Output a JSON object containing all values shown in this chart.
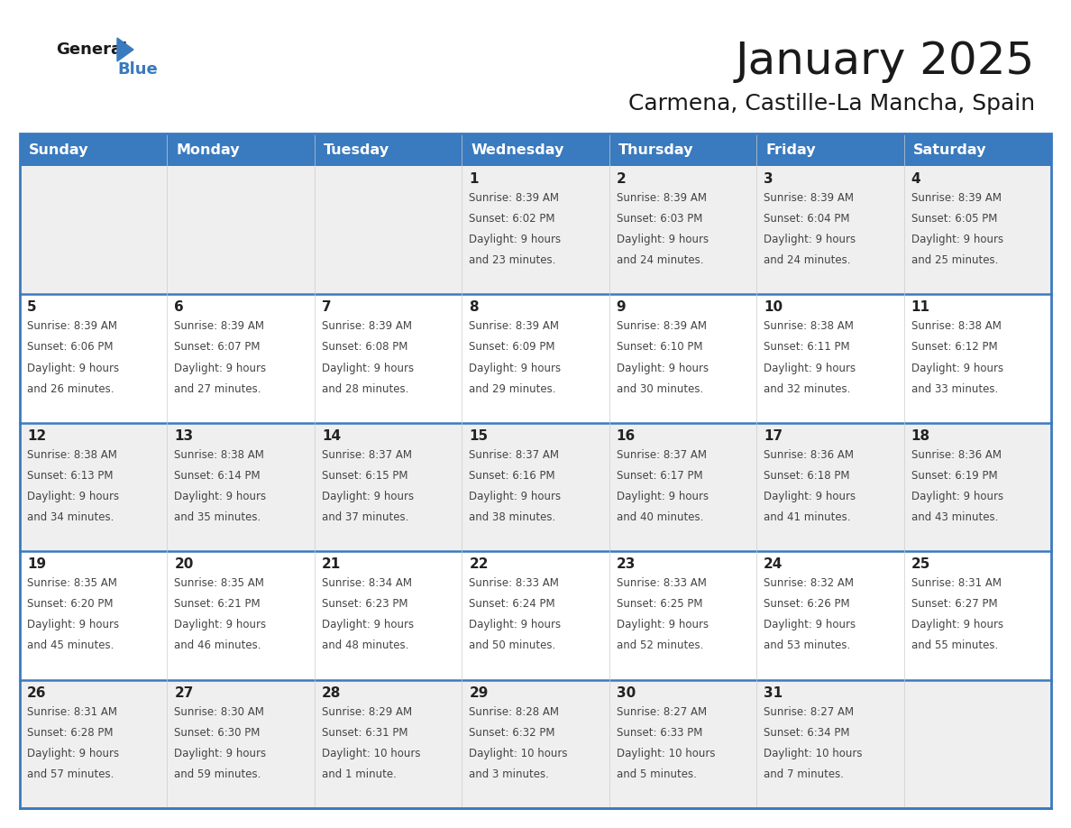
{
  "title": "January 2025",
  "subtitle": "Carmena, Castille-La Mancha, Spain",
  "header_bg_color": "#3a7abf",
  "header_text_color": "#ffffff",
  "day_names": [
    "Sunday",
    "Monday",
    "Tuesday",
    "Wednesday",
    "Thursday",
    "Friday",
    "Saturday"
  ],
  "title_color": "#1a1a1a",
  "subtitle_color": "#1a1a1a",
  "cell_text_color": "#444444",
  "cell_number_color": "#222222",
  "divider_color": "#3a7abf",
  "bg_color": "#ffffff",
  "alt_row_color": "#efefef",
  "logo_general_color": "#1a1a1a",
  "logo_blue_color": "#3a7abf",
  "calendar_data": [
    {
      "day": 1,
      "col": 3,
      "row": 0,
      "sunrise": "8:39 AM",
      "sunset": "6:02 PM",
      "daylight_hours": 9,
      "daylight_minutes": 23
    },
    {
      "day": 2,
      "col": 4,
      "row": 0,
      "sunrise": "8:39 AM",
      "sunset": "6:03 PM",
      "daylight_hours": 9,
      "daylight_minutes": 24
    },
    {
      "day": 3,
      "col": 5,
      "row": 0,
      "sunrise": "8:39 AM",
      "sunset": "6:04 PM",
      "daylight_hours": 9,
      "daylight_minutes": 24
    },
    {
      "day": 4,
      "col": 6,
      "row": 0,
      "sunrise": "8:39 AM",
      "sunset": "6:05 PM",
      "daylight_hours": 9,
      "daylight_minutes": 25
    },
    {
      "day": 5,
      "col": 0,
      "row": 1,
      "sunrise": "8:39 AM",
      "sunset": "6:06 PM",
      "daylight_hours": 9,
      "daylight_minutes": 26
    },
    {
      "day": 6,
      "col": 1,
      "row": 1,
      "sunrise": "8:39 AM",
      "sunset": "6:07 PM",
      "daylight_hours": 9,
      "daylight_minutes": 27
    },
    {
      "day": 7,
      "col": 2,
      "row": 1,
      "sunrise": "8:39 AM",
      "sunset": "6:08 PM",
      "daylight_hours": 9,
      "daylight_minutes": 28
    },
    {
      "day": 8,
      "col": 3,
      "row": 1,
      "sunrise": "8:39 AM",
      "sunset": "6:09 PM",
      "daylight_hours": 9,
      "daylight_minutes": 29
    },
    {
      "day": 9,
      "col": 4,
      "row": 1,
      "sunrise": "8:39 AM",
      "sunset": "6:10 PM",
      "daylight_hours": 9,
      "daylight_minutes": 30
    },
    {
      "day": 10,
      "col": 5,
      "row": 1,
      "sunrise": "8:38 AM",
      "sunset": "6:11 PM",
      "daylight_hours": 9,
      "daylight_minutes": 32
    },
    {
      "day": 11,
      "col": 6,
      "row": 1,
      "sunrise": "8:38 AM",
      "sunset": "6:12 PM",
      "daylight_hours": 9,
      "daylight_minutes": 33
    },
    {
      "day": 12,
      "col": 0,
      "row": 2,
      "sunrise": "8:38 AM",
      "sunset": "6:13 PM",
      "daylight_hours": 9,
      "daylight_minutes": 34
    },
    {
      "day": 13,
      "col": 1,
      "row": 2,
      "sunrise": "8:38 AM",
      "sunset": "6:14 PM",
      "daylight_hours": 9,
      "daylight_minutes": 35
    },
    {
      "day": 14,
      "col": 2,
      "row": 2,
      "sunrise": "8:37 AM",
      "sunset": "6:15 PM",
      "daylight_hours": 9,
      "daylight_minutes": 37
    },
    {
      "day": 15,
      "col": 3,
      "row": 2,
      "sunrise": "8:37 AM",
      "sunset": "6:16 PM",
      "daylight_hours": 9,
      "daylight_minutes": 38
    },
    {
      "day": 16,
      "col": 4,
      "row": 2,
      "sunrise": "8:37 AM",
      "sunset": "6:17 PM",
      "daylight_hours": 9,
      "daylight_minutes": 40
    },
    {
      "day": 17,
      "col": 5,
      "row": 2,
      "sunrise": "8:36 AM",
      "sunset": "6:18 PM",
      "daylight_hours": 9,
      "daylight_minutes": 41
    },
    {
      "day": 18,
      "col": 6,
      "row": 2,
      "sunrise": "8:36 AM",
      "sunset": "6:19 PM",
      "daylight_hours": 9,
      "daylight_minutes": 43
    },
    {
      "day": 19,
      "col": 0,
      "row": 3,
      "sunrise": "8:35 AM",
      "sunset": "6:20 PM",
      "daylight_hours": 9,
      "daylight_minutes": 45
    },
    {
      "day": 20,
      "col": 1,
      "row": 3,
      "sunrise": "8:35 AM",
      "sunset": "6:21 PM",
      "daylight_hours": 9,
      "daylight_minutes": 46
    },
    {
      "day": 21,
      "col": 2,
      "row": 3,
      "sunrise": "8:34 AM",
      "sunset": "6:23 PM",
      "daylight_hours": 9,
      "daylight_minutes": 48
    },
    {
      "day": 22,
      "col": 3,
      "row": 3,
      "sunrise": "8:33 AM",
      "sunset": "6:24 PM",
      "daylight_hours": 9,
      "daylight_minutes": 50
    },
    {
      "day": 23,
      "col": 4,
      "row": 3,
      "sunrise": "8:33 AM",
      "sunset": "6:25 PM",
      "daylight_hours": 9,
      "daylight_minutes": 52
    },
    {
      "day": 24,
      "col": 5,
      "row": 3,
      "sunrise": "8:32 AM",
      "sunset": "6:26 PM",
      "daylight_hours": 9,
      "daylight_minutes": 53
    },
    {
      "day": 25,
      "col": 6,
      "row": 3,
      "sunrise": "8:31 AM",
      "sunset": "6:27 PM",
      "daylight_hours": 9,
      "daylight_minutes": 55
    },
    {
      "day": 26,
      "col": 0,
      "row": 4,
      "sunrise": "8:31 AM",
      "sunset": "6:28 PM",
      "daylight_hours": 9,
      "daylight_minutes": 57
    },
    {
      "day": 27,
      "col": 1,
      "row": 4,
      "sunrise": "8:30 AM",
      "sunset": "6:30 PM",
      "daylight_hours": 9,
      "daylight_minutes": 59
    },
    {
      "day": 28,
      "col": 2,
      "row": 4,
      "sunrise": "8:29 AM",
      "sunset": "6:31 PM",
      "daylight_hours": 10,
      "daylight_minutes": 1
    },
    {
      "day": 29,
      "col": 3,
      "row": 4,
      "sunrise": "8:28 AM",
      "sunset": "6:32 PM",
      "daylight_hours": 10,
      "daylight_minutes": 3
    },
    {
      "day": 30,
      "col": 4,
      "row": 4,
      "sunrise": "8:27 AM",
      "sunset": "6:33 PM",
      "daylight_hours": 10,
      "daylight_minutes": 5
    },
    {
      "day": 31,
      "col": 5,
      "row": 4,
      "sunrise": "8:27 AM",
      "sunset": "6:34 PM",
      "daylight_hours": 10,
      "daylight_minutes": 7
    }
  ]
}
